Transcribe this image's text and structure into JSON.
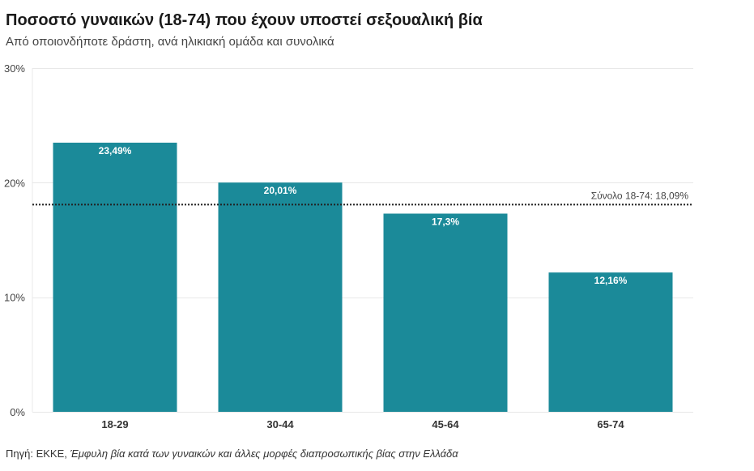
{
  "title": "Ποσοστό γυναικών (18-74) που έχουν υποστεί σεξουαλική βία",
  "subtitle": "Από οποιονδήποτε δράστη, ανά ηλικιακή ομάδα και συνολικά",
  "source": {
    "prefix": "Πηγή: ΕΚΚΕ, ",
    "title": "Έμφυλη βία κατά των γυναικών και άλλες μορφές διαπροσωπικής βίας στην Ελλάδα"
  },
  "colors": {
    "bar": "#1b8a99",
    "grid": "#e8e8e8",
    "reference": "#222222"
  },
  "chart_data": {
    "type": "bar",
    "categories": [
      "18-29",
      "30-44",
      "45-64",
      "65-74"
    ],
    "values": [
      23.49,
      20.01,
      17.3,
      12.16
    ],
    "value_labels": [
      "23,49%",
      "20,01%",
      "17,3%",
      "12,16%"
    ],
    "ylim": [
      0,
      30
    ],
    "yticks": [
      0,
      10,
      20,
      30
    ],
    "ytick_labels": [
      "0%",
      "10%",
      "20%",
      "30%"
    ],
    "grid": true,
    "reference_line": {
      "value": 18.09,
      "label": "Σύνολο 18-74: 18,09%",
      "style": "dotted"
    }
  }
}
